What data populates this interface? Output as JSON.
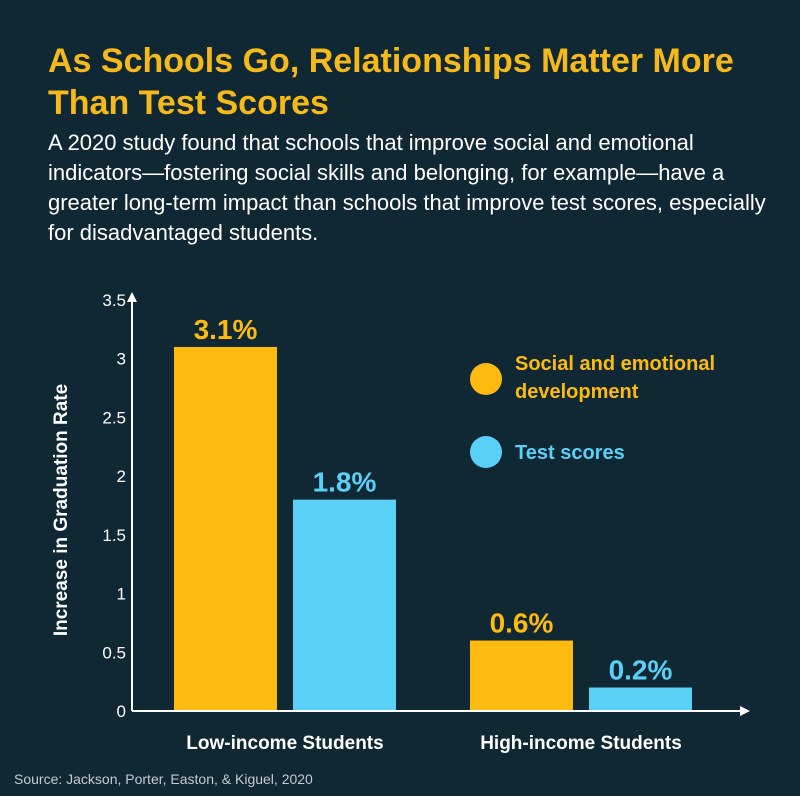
{
  "header": {
    "title": "As Schools Go, Relationships Matter More Than Test Scores",
    "subtitle": "A 2020 study found that schools that improve social and emotional indicators—fostering social skills and belonging, for example—have a greater long-term impact than schools that improve test scores, especially for disadvantaged students."
  },
  "source": "Source: Jackson, Porter, Easton, & Kiguel, 2020",
  "colors": {
    "background": "#102734",
    "title": "#f6b91a",
    "social": "#fdbb12",
    "test": "#5bd0f7",
    "axis": "#ffffff"
  },
  "chart_data": {
    "type": "bar",
    "title": "",
    "xlabel": "",
    "ylabel": "Increase in Graduation Rate",
    "categories": [
      "Low-income Students",
      "High-income Students"
    ],
    "series": [
      {
        "name": "Social and emotional development",
        "values": [
          3.1,
          0.6
        ],
        "labels": [
          "3.1%",
          "0.6%"
        ]
      },
      {
        "name": "Test scores",
        "values": [
          1.8,
          0.2
        ],
        "labels": [
          "1.8%",
          "0.2%"
        ]
      }
    ],
    "yticks": [
      "0",
      "0.5",
      "1",
      "1.5",
      "2",
      "2.5",
      "3",
      "3.5"
    ],
    "ylim": [
      0,
      3.5
    ],
    "grid": false,
    "legend_position": "top-right"
  }
}
